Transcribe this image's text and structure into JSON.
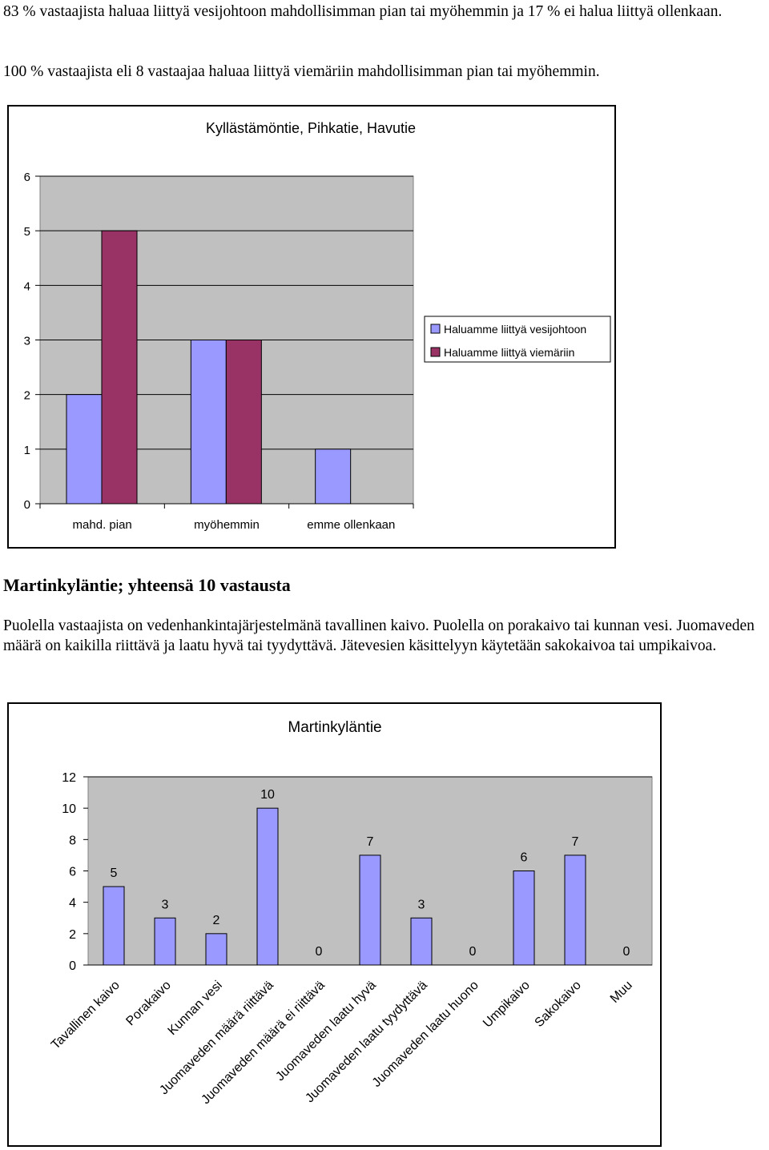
{
  "paragraphs": {
    "p1": "83 % vastaajista haluaa liittyä vesijohtoon mahdollisimman pian tai myöhemmin ja 17 % ei halua liittyä ollenkaan.",
    "p2": "100 % vastaajista eli 8 vastaajaa haluaa liittyä viemäriin mahdollisimman pian tai myöhemmin.",
    "heading": "Martinkyläntie; yhteensä 10 vastausta",
    "p3": "Puolella vastaajista on vedenhankintajärjestelmänä tavallinen kaivo. Puolella on porakaivo tai kunnan vesi. Juomaveden määrä on kaikilla riittävä ja laatu hyvä tai tyydyttävä. Jätevesien käsittelyyn käytetään sakokaivoa tai umpikaivoa."
  },
  "colors": {
    "plot_bg": "#c0c0c0",
    "series_water": "#9999ff",
    "series_sewer": "#993366"
  },
  "chart_data": [
    {
      "type": "bar",
      "title": "Kyllästämöntie, Pihkatie, Havutie",
      "categories": [
        "mahd. pian",
        "myöhemmin",
        "emme ollenkaan"
      ],
      "series": [
        {
          "name": "Haluamme liittyä vesijohtoon",
          "values": [
            2,
            3,
            1
          ]
        },
        {
          "name": "Haluamme liittyä viemäriin",
          "values": [
            5,
            3,
            0
          ]
        }
      ],
      "yticks": [
        "0",
        "1",
        "2",
        "3",
        "4",
        "5",
        "6"
      ],
      "ylim": [
        0,
        6
      ],
      "legend": "right",
      "grid": true
    },
    {
      "type": "bar",
      "title": "Martinkyläntie",
      "categories": [
        "Tavallinen kaivo",
        "Porakaivo",
        "Kunnan vesi",
        "Juomaveden määrä riittävä",
        "Juomaveden määrä ei riittävä",
        "Juomaveden laatu hyvä",
        "Juomaveden laatu tyydyttävä",
        "Juomaveden laatu huono",
        "Umpikaivo",
        "Sakokaivo",
        "Muu"
      ],
      "values": [
        5,
        3,
        2,
        10,
        0,
        7,
        3,
        0,
        6,
        7,
        0
      ],
      "data_labels": [
        "5",
        "3",
        "2",
        "10",
        "0",
        "7",
        "3",
        "0",
        "6",
        "7",
        "0"
      ],
      "yticks": [
        "0",
        "2",
        "4",
        "6",
        "8",
        "10",
        "12"
      ],
      "ylim": [
        0,
        12
      ],
      "grid": true
    }
  ]
}
